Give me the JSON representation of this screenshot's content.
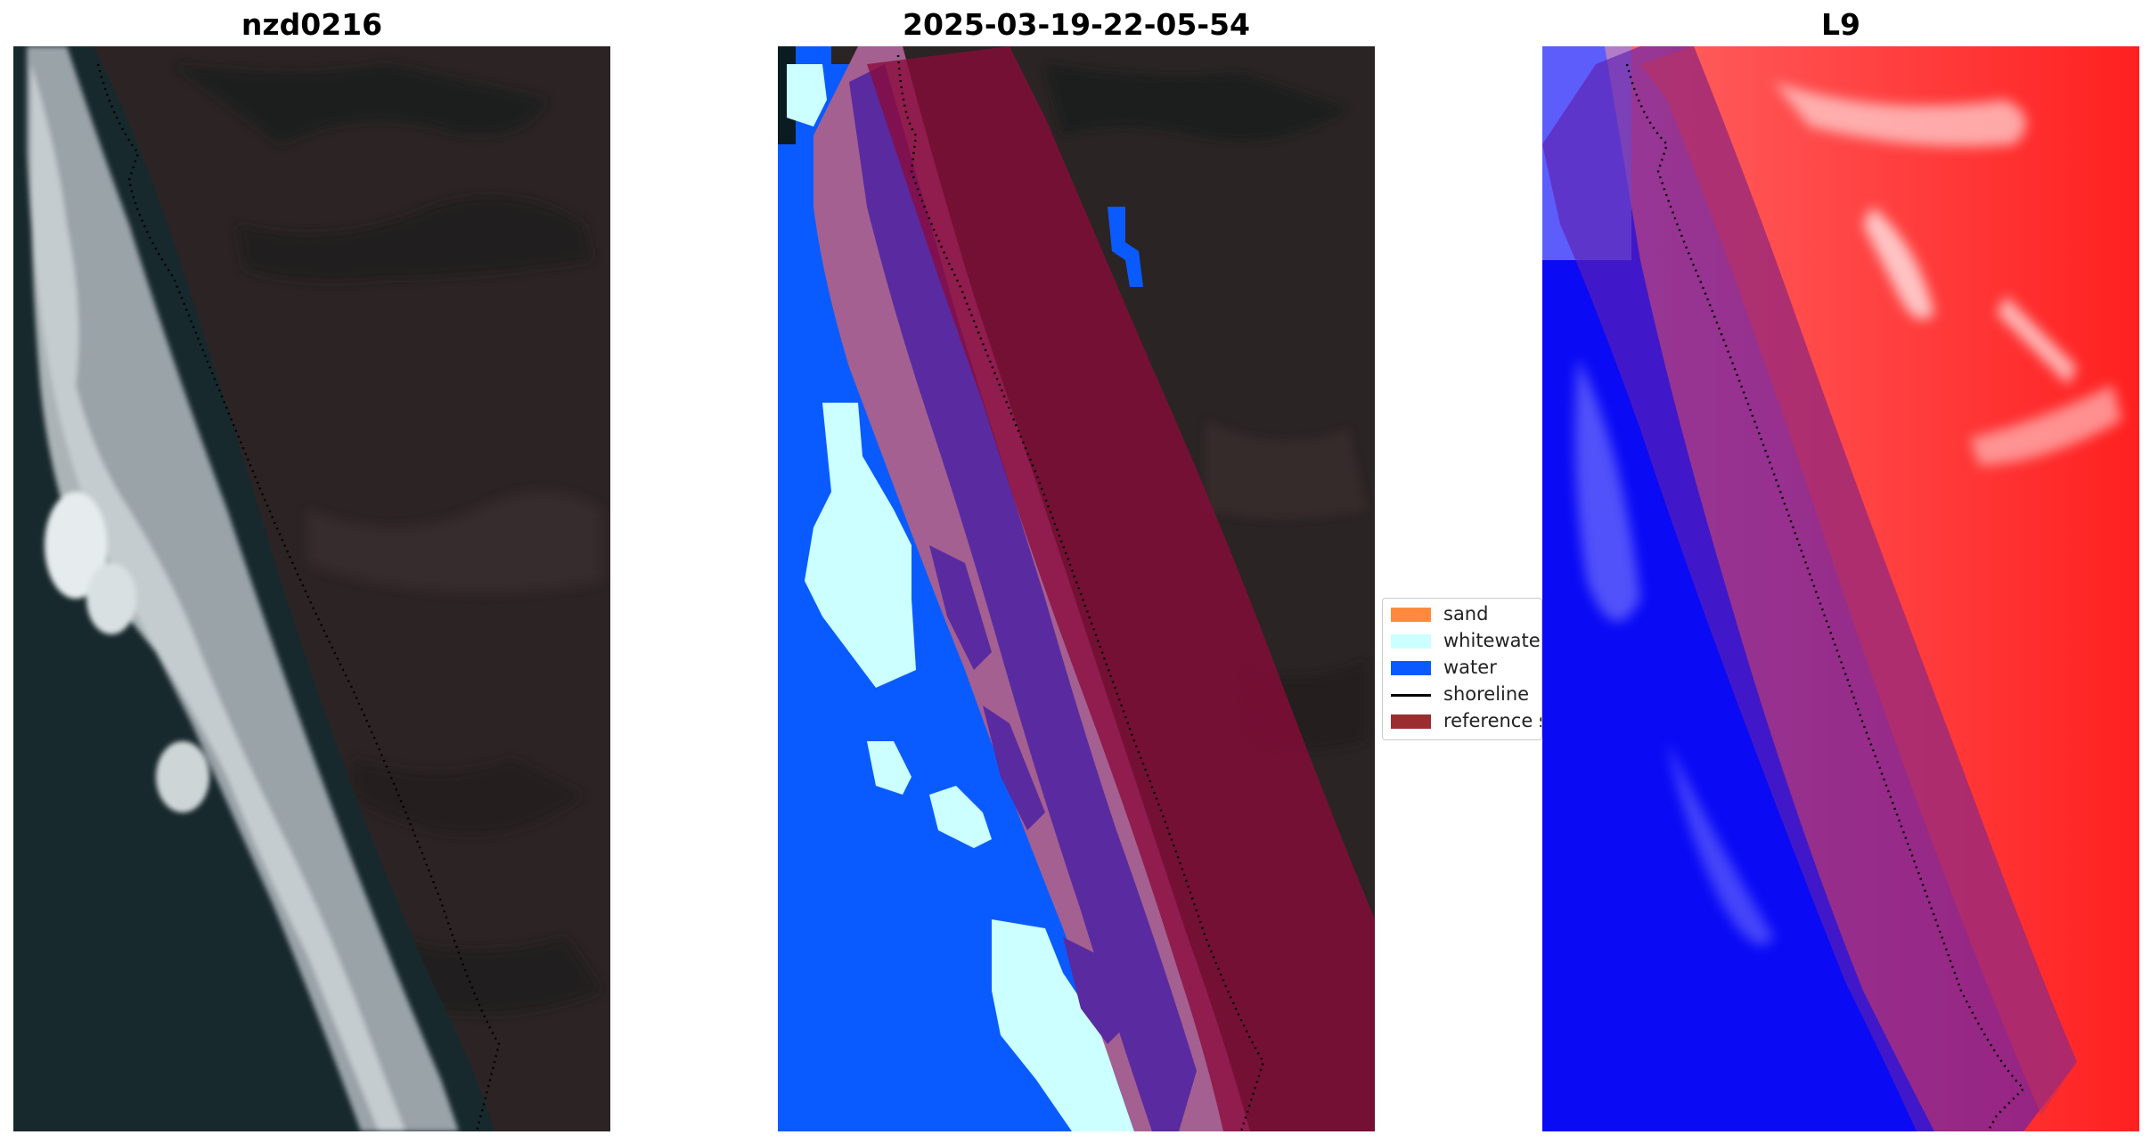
{
  "panels": [
    {
      "title": "nzd0216"
    },
    {
      "title": "2025-03-19-22-05-54"
    },
    {
      "title": "L9"
    }
  ],
  "legend": {
    "items": [
      {
        "label": "sand",
        "kind": "patch",
        "color": "#ff8a3d"
      },
      {
        "label": "whitewater",
        "kind": "patch",
        "color": "#ccffff"
      },
      {
        "label": "water",
        "kind": "patch",
        "color": "#0a5bff"
      },
      {
        "label": "shoreline",
        "kind": "line",
        "color": "#000000"
      },
      {
        "label": "reference shoreline buffer",
        "kind": "patch",
        "color": "#9b2d30"
      }
    ]
  },
  "colors": {
    "land": "#2e2626",
    "sea": "#15282b",
    "whitewater": "#ccffff",
    "water": "#0a5bff",
    "buffer": "#8a0a3a",
    "sand_classified": "#a46090",
    "dark_class": "#5a2aa0",
    "index_positive": "#ff2a2a",
    "index_negative": "#0a0af5"
  }
}
